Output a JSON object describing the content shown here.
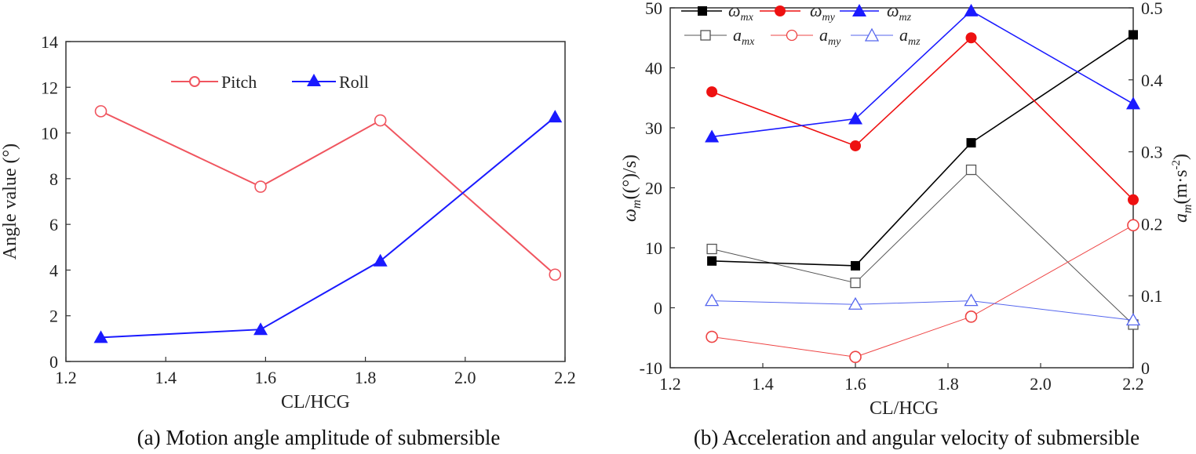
{
  "chart_data": [
    {
      "type": "line",
      "caption": "(a) Motion angle amplitude of submersible",
      "xlabel": "CL/HCG",
      "ylabel": "Angle value (°)",
      "xlim": [
        1.2,
        2.2
      ],
      "ylim": [
        0,
        14
      ],
      "xticks": [
        "1.2",
        "1.4",
        "1.6",
        "1.8",
        "2.0",
        "2.2"
      ],
      "yticks": [
        "0",
        "2",
        "4",
        "6",
        "8",
        "10",
        "12",
        "14"
      ],
      "x": [
        1.27,
        1.59,
        1.83,
        2.18
      ],
      "series": [
        {
          "name": "Pitch",
          "values": [
            10.95,
            7.65,
            10.55,
            3.8
          ],
          "color": "#f0555f",
          "marker": "open-circle"
        },
        {
          "name": "Roll",
          "values": [
            1.05,
            1.4,
            4.4,
            10.7
          ],
          "color": "#1a1aff",
          "marker": "filled-triangle"
        }
      ]
    },
    {
      "type": "line",
      "caption": "(b) Acceleration and angular velocity of submersible",
      "xlabel": "CL/HCG",
      "ylabel_left": {
        "main": "ω",
        "sub": "m",
        "rest": "((°)/s)"
      },
      "ylabel_right": {
        "main": "a",
        "sub": "m",
        "rest": "(m·s",
        "sup": "-2",
        "close": ")"
      },
      "xlim": [
        1.2,
        2.2
      ],
      "ylim_left": [
        -10,
        50
      ],
      "ylim_right": [
        0,
        0.5
      ],
      "xticks": [
        "1.2",
        "1.4",
        "1.6",
        "1.8",
        "2.0",
        "2.2"
      ],
      "yticks_left": [
        "-10",
        "0",
        "10",
        "20",
        "30",
        "40",
        "50"
      ],
      "yticks_right": [
        "0",
        "0.1",
        "0.2",
        "0.3",
        "0.4",
        "0.5"
      ],
      "x": [
        1.29,
        1.6,
        1.85,
        2.2
      ],
      "series": [
        {
          "name": "ω",
          "sub": "mx",
          "axis": "left",
          "values": [
            7.8,
            7.0,
            27.5,
            45.5
          ],
          "color": "#000000",
          "marker": "filled-square"
        },
        {
          "name": "ω",
          "sub": "my",
          "axis": "left",
          "values": [
            36.0,
            27.0,
            45.0,
            18.0
          ],
          "color": "#ee1111",
          "marker": "filled-circle"
        },
        {
          "name": "ω",
          "sub": "mz",
          "axis": "left",
          "values": [
            28.5,
            31.5,
            49.5,
            34.0
          ],
          "color": "#1a1aff",
          "marker": "filled-triangle"
        },
        {
          "name": "a",
          "sub": "mx",
          "axis": "right",
          "values": [
            0.165,
            0.118,
            0.275,
            0.06
          ],
          "color": "#555555",
          "marker": "open-square"
        },
        {
          "name": "a",
          "sub": "my",
          "axis": "right",
          "values": [
            0.043,
            0.015,
            0.071,
            0.198
          ],
          "color": "#ee4444",
          "marker": "open-circle"
        },
        {
          "name": "a",
          "sub": "mz",
          "axis": "right",
          "values": [
            0.093,
            0.088,
            0.093,
            0.066
          ],
          "color": "#5566ee",
          "marker": "open-triangle"
        }
      ]
    }
  ]
}
